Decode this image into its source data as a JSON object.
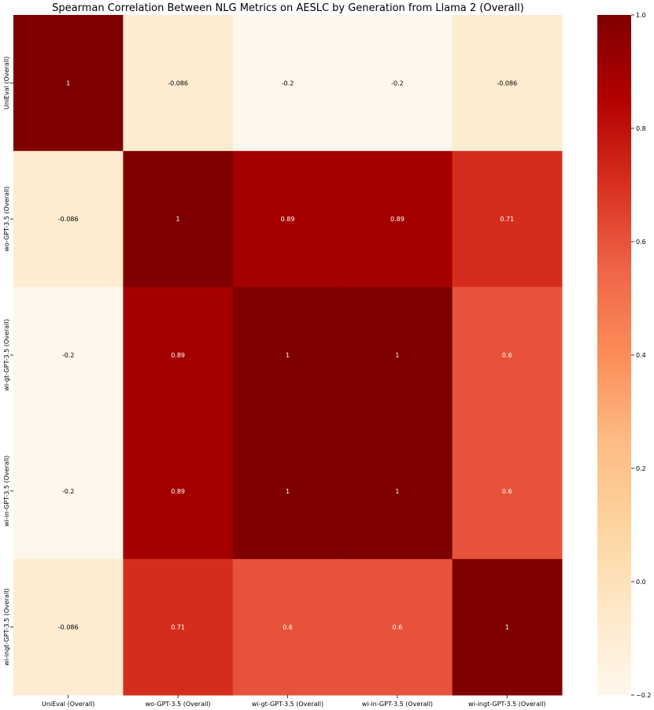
{
  "chart_data": {
    "type": "heatmap",
    "title": "Spearman Correlation Between NLG Metrics on AESLC by Generation from Llama 2 (Overall)",
    "x_labels": [
      "UniEval (Overall)",
      "wo-GPT-3.5 (Overall)",
      "wi-gt-GPT-3.5 (Overall)",
      "wi-in-GPT-3.5 (Overall)",
      "wi-ingt-GPT-3.5 (Overall)"
    ],
    "y_labels": [
      "UniEval (Overall)",
      "wo-GPT-3.5 (Overall)",
      "wi-gt-GPT-3.5 (Overall)",
      "wi-in-GPT-3.5 (Overall)",
      "wi-ingt-GPT-3.5 (Overall)"
    ],
    "values": [
      [
        1,
        -0.086,
        -0.2,
        -0.2,
        -0.086
      ],
      [
        -0.086,
        1,
        0.89,
        0.89,
        0.71
      ],
      [
        -0.2,
        0.89,
        1,
        1,
        0.6
      ],
      [
        -0.2,
        0.89,
        1,
        1,
        0.6
      ],
      [
        -0.086,
        0.71,
        0.6,
        0.6,
        1
      ]
    ],
    "labels": [
      [
        "1",
        "-0.086",
        "-0.2",
        "-0.2",
        "-0.086"
      ],
      [
        "-0.086",
        "1",
        "0.89",
        "0.89",
        "0.71"
      ],
      [
        "-0.2",
        "0.89",
        "1",
        "1",
        "0.6"
      ],
      [
        "-0.2",
        "0.89",
        "1",
        "1",
        "0.6"
      ],
      [
        "-0.086",
        "0.71",
        "0.6",
        "0.6",
        "1"
      ]
    ],
    "colorbar": {
      "range": [
        -0.2,
        1.0
      ],
      "ticks": [
        -0.2,
        0.0,
        0.2,
        0.4,
        0.6,
        0.8,
        1.0
      ],
      "tick_labels": [
        "−0.2",
        "0.0",
        "0.2",
        "0.4",
        "0.6",
        "0.8",
        "1.0"
      ],
      "colormap": "OrRd",
      "colormap_stops": [
        "#fff7ec",
        "#fee8c8",
        "#fdd49e",
        "#fdbb84",
        "#fc8d59",
        "#ef6548",
        "#d7301f",
        "#b30000",
        "#7f0000"
      ]
    },
    "grid": false,
    "annotate": true
  }
}
